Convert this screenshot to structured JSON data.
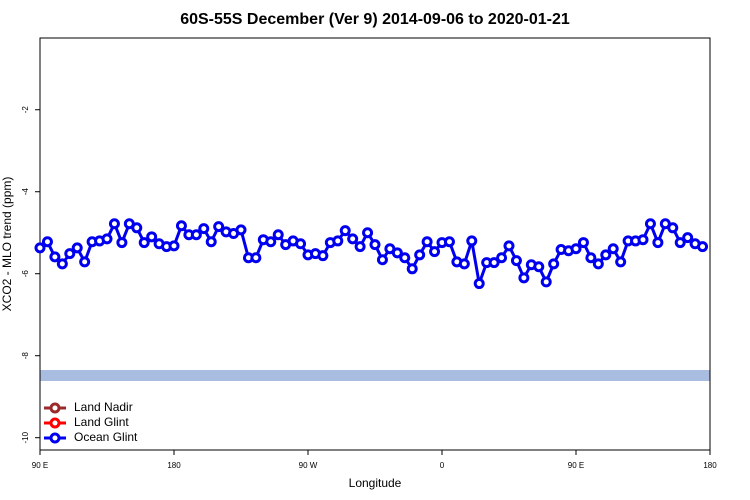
{
  "chart_data": {
    "type": "line",
    "title": "60S-55S December (Ver 9)   2014-09-06 to 2020-01-21",
    "x_label": "Longitude",
    "y_label": "XCO2 - MLO trend (ppm)",
    "x": [
      90,
      95,
      100,
      105,
      110,
      115,
      120,
      125,
      130,
      135,
      140,
      145,
      150,
      155,
      160,
      165,
      170,
      175,
      180,
      185,
      190,
      195,
      200,
      205,
      210,
      215,
      220,
      225,
      230,
      235,
      240,
      245,
      250,
      255,
      260,
      265,
      270,
      275,
      280,
      285,
      290,
      295,
      300,
      305,
      310,
      315,
      320,
      325,
      330,
      335,
      340,
      345,
      350,
      355,
      360,
      365,
      370,
      375,
      380,
      385,
      390,
      395,
      400,
      405,
      410,
      415,
      420,
      425,
      430,
      435,
      440,
      445,
      450,
      455,
      460,
      465,
      470,
      475,
      480,
      485,
      490,
      495,
      500,
      505,
      510,
      515,
      520,
      525,
      530,
      535
    ],
    "series": [
      {
        "name": "Land Nadir",
        "color": "#9b2b2b",
        "values": [
          null,
          null,
          null,
          null,
          null,
          null,
          null,
          null,
          null,
          null,
          null,
          null,
          null,
          null,
          null,
          null,
          null,
          null,
          null,
          null,
          null,
          null,
          null,
          null,
          null,
          null,
          null,
          null,
          null,
          null,
          null,
          null,
          null,
          null,
          null,
          null,
          null,
          null,
          null,
          null,
          null,
          null,
          null,
          null,
          null,
          null,
          null,
          null,
          null,
          null,
          null,
          null,
          null,
          null,
          null,
          null,
          null,
          null,
          null,
          null,
          null,
          null,
          null,
          null,
          null,
          null,
          null,
          null,
          null,
          null,
          null,
          null,
          null,
          null,
          null,
          null,
          null,
          null,
          null,
          null,
          null,
          null,
          null,
          null,
          null,
          null,
          null,
          null,
          null,
          null
        ]
      },
      {
        "name": "Land Glint",
        "color": "#ff0000",
        "values": [
          null,
          null,
          null,
          null,
          null,
          null,
          null,
          null,
          null,
          null,
          null,
          null,
          null,
          null,
          null,
          null,
          null,
          null,
          null,
          null,
          null,
          null,
          null,
          null,
          null,
          null,
          null,
          null,
          null,
          null,
          null,
          null,
          null,
          null,
          null,
          null,
          null,
          null,
          null,
          null,
          null,
          null,
          null,
          null,
          null,
          null,
          null,
          null,
          null,
          null,
          null,
          null,
          null,
          null,
          null,
          null,
          null,
          null,
          null,
          null,
          null,
          null,
          null,
          null,
          null,
          null,
          null,
          null,
          null,
          null,
          null,
          null,
          null,
          null,
          null,
          null,
          null,
          null,
          null,
          null,
          null,
          null,
          null,
          null,
          null,
          null,
          null,
          null,
          null,
          null
        ]
      },
      {
        "name": "Ocean Glint",
        "color": "#0000ee",
        "values": [
          -5.37,
          -5.22,
          -5.59,
          -5.76,
          -5.51,
          -5.37,
          -5.71,
          -5.22,
          -5.2,
          -5.15,
          -4.78,
          -5.24,
          -4.78,
          -4.88,
          -5.24,
          -5.1,
          -5.27,
          -5.34,
          -5.32,
          -4.83,
          -5.05,
          -5.05,
          -4.9,
          -5.22,
          -4.85,
          -4.98,
          -5.02,
          -4.93,
          -5.61,
          -5.61,
          -5.17,
          -5.22,
          -5.05,
          -5.29,
          -5.2,
          -5.27,
          -5.54,
          -5.51,
          -5.56,
          -5.24,
          -5.2,
          -4.95,
          -5.15,
          -5.34,
          -5.0,
          -5.29,
          -5.66,
          -5.39,
          -5.49,
          -5.61,
          -5.88,
          -5.54,
          -5.22,
          -5.46,
          -5.24,
          -5.22,
          -5.71,
          -5.76,
          -5.2,
          -6.24,
          -5.73,
          -5.73,
          -5.61,
          -5.32,
          -5.68,
          -6.1,
          -5.78,
          -5.83,
          -6.2,
          -5.76,
          -5.41,
          -5.44,
          -5.39,
          -5.24,
          -5.61,
          -5.76,
          -5.54,
          -5.39,
          -5.71,
          -5.2,
          -5.2,
          -5.17,
          -4.78,
          -5.24,
          -4.78,
          -4.88,
          -5.24,
          -5.12,
          -5.27,
          -5.34
        ]
      }
    ],
    "xlim": [
      90,
      540
    ],
    "xticks": [
      {
        "value": 90,
        "label": "90 E"
      },
      180,
      {
        "value": 270,
        "label": "90 W"
      },
      {
        "value": 360,
        "label": "0"
      },
      {
        "value": 450,
        "label": "90 E"
      },
      {
        "value": 540,
        "label": "180"
      }
    ],
    "ylim": [
      -10.3,
      -0.25
    ],
    "yticks": [
      -10,
      -8,
      -6,
      -4,
      -2
    ],
    "legend": "bottom-left"
  }
}
